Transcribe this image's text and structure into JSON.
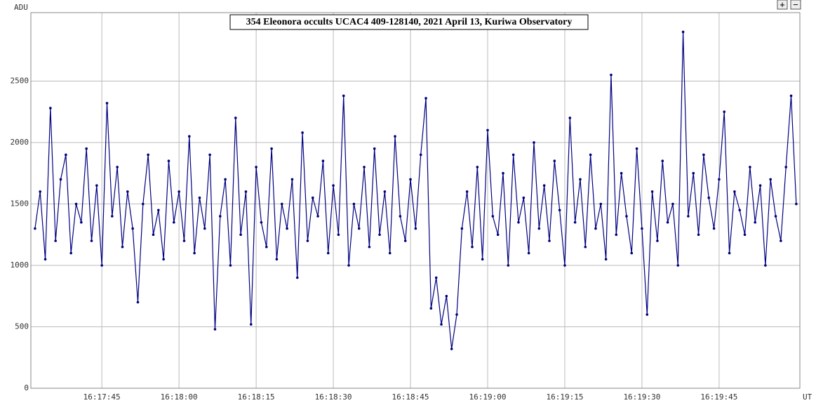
{
  "chart_data": {
    "type": "line",
    "title": "354 Eleonora occults UCAC4 409-128140, 2021 April 13, Kuriwa Observatory",
    "y_label": "ADU",
    "x_label": "UT",
    "buttons": [
      "+",
      "−"
    ],
    "color": "#000080",
    "grid": true,
    "xlim": [
      58651.2,
      58800.7
    ],
    "ylim": [
      0,
      3057
    ],
    "xticks": [
      {
        "value": 58665,
        "label": "16:17:45"
      },
      {
        "value": 58680,
        "label": "16:18:00"
      },
      {
        "value": 58695,
        "label": "16:18:15"
      },
      {
        "value": 58710,
        "label": "16:18:30"
      },
      {
        "value": 58725,
        "label": "16:18:45"
      },
      {
        "value": 58740,
        "label": "16:19:00"
      },
      {
        "value": 58755,
        "label": "16:19:15"
      },
      {
        "value": 58770,
        "label": "16:19:30"
      },
      {
        "value": 58785,
        "label": "16:19:45"
      }
    ],
    "yticks": [
      0,
      500,
      1000,
      1500,
      2000,
      2500
    ],
    "x": [
      58652,
      58653,
      58654,
      58655,
      58656,
      58657,
      58658,
      58659,
      58660,
      58661,
      58662,
      58663,
      58664,
      58665,
      58666,
      58667,
      58668,
      58669,
      58670,
      58671,
      58672,
      58673,
      58674,
      58675,
      58676,
      58677,
      58678,
      58679,
      58680,
      58681,
      58682,
      58683,
      58684,
      58685,
      58686,
      58687,
      58688,
      58689,
      58690,
      58691,
      58692,
      58693,
      58694,
      58695,
      58696,
      58697,
      58698,
      58699,
      58700,
      58701,
      58702,
      58703,
      58704,
      58705,
      58706,
      58707,
      58708,
      58709,
      58710,
      58711,
      58712,
      58713,
      58714,
      58715,
      58716,
      58717,
      58718,
      58719,
      58720,
      58721,
      58722,
      58723,
      58724,
      58725,
      58726,
      58727,
      58728,
      58729,
      58730,
      58731,
      58732,
      58733,
      58734,
      58735,
      58736,
      58737,
      58738,
      58739,
      58740,
      58741,
      58742,
      58743,
      58744,
      58745,
      58746,
      58747,
      58748,
      58749,
      58750,
      58751,
      58752,
      58753,
      58754,
      58755,
      58756,
      58757,
      58758,
      58759,
      58760,
      58761,
      58762,
      58763,
      58764,
      58765,
      58766,
      58767,
      58768,
      58769,
      58770,
      58771,
      58772,
      58773,
      58774,
      58775,
      58776,
      58777,
      58778,
      58779,
      58780,
      58781,
      58782,
      58783,
      58784,
      58785,
      58786,
      58787,
      58788,
      58789,
      58790,
      58791,
      58792,
      58793,
      58794,
      58795,
      58796,
      58797,
      58798,
      58799,
      58800
    ],
    "values": [
      1300,
      1600,
      1050,
      2280,
      1200,
      1700,
      1900,
      1100,
      1500,
      1350,
      1950,
      1200,
      1650,
      1000,
      2320,
      1400,
      1800,
      1150,
      1600,
      1300,
      700,
      1500,
      1900,
      1250,
      1450,
      1050,
      1850,
      1350,
      1600,
      1200,
      2050,
      1100,
      1550,
      1300,
      1900,
      480,
      1400,
      1700,
      1000,
      2200,
      1250,
      1600,
      520,
      1800,
      1350,
      1150,
      1950,
      1050,
      1500,
      1300,
      1700,
      900,
      2080,
      1200,
      1550,
      1400,
      1850,
      1100,
      1650,
      1250,
      2380,
      1000,
      1500,
      1300,
      1800,
      1150,
      1950,
      1250,
      1600,
      1100,
      2050,
      1400,
      1200,
      1700,
      1300,
      1900,
      2360,
      650,
      900,
      520,
      750,
      320,
      600,
      1300,
      1600,
      1150,
      1800,
      1050,
      2100,
      1400,
      1250,
      1750,
      1000,
      1900,
      1350,
      1550,
      1100,
      2000,
      1300,
      1650,
      1200,
      1850,
      1450,
      1000,
      2200,
      1350,
      1700,
      1150,
      1900,
      1300,
      1500,
      1050,
      2550,
      1250,
      1750,
      1400,
      1100,
      1950,
      1300,
      600,
      1600,
      1200,
      1850,
      1350,
      1500,
      1000,
      2900,
      1400,
      1750,
      1250,
      1900,
      1550,
      1300,
      1700,
      2250,
      1100,
      1600,
      1450,
      1250,
      1800,
      1350,
      1650,
      1000,
      1700,
      1400,
      1200,
      1800,
      2380,
      1500
    ]
  }
}
